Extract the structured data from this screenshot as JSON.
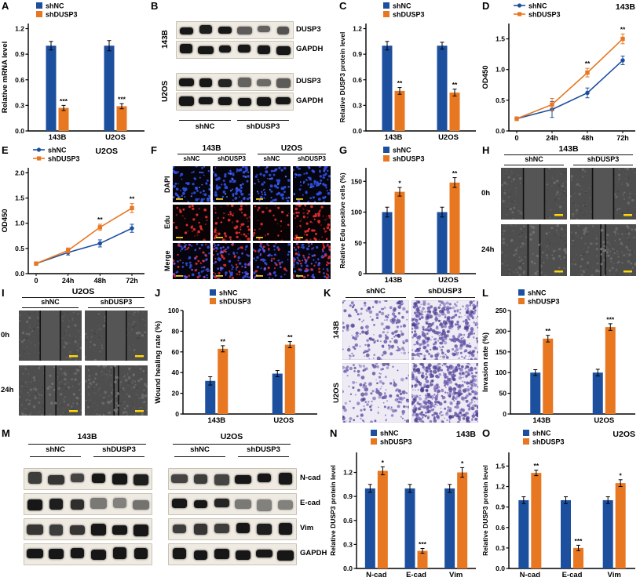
{
  "colors": {
    "shNC": "#1c4f9e",
    "shDUSP3": "#e87722"
  },
  "legend": {
    "shNC": "shNC",
    "shDUSP3": "shDUSP3"
  },
  "panels": {
    "A": {
      "label": "A"
    },
    "B": {
      "label": "B",
      "cells": [
        "143B",
        "U2OS"
      ],
      "rows": [
        "DUSP3",
        "GAPDH"
      ],
      "lane_groups": [
        "shNC",
        "shDUSP3"
      ]
    },
    "C": {
      "label": "C"
    },
    "D": {
      "label": "D"
    },
    "E": {
      "label": "E"
    },
    "F": {
      "label": "F",
      "cell_groups": [
        "143B",
        "U2OS"
      ],
      "sub_cols": [
        "shNC",
        "shDUSP3"
      ],
      "rows": [
        "DAPI",
        "Edu",
        "Merge"
      ]
    },
    "G": {
      "label": "G"
    },
    "H": {
      "label": "H",
      "title": "143B",
      "cols": [
        "shNC",
        "shDUSP3"
      ],
      "rows": [
        "0h",
        "24h"
      ]
    },
    "I": {
      "label": "I",
      "title": "U2OS",
      "cols": [
        "shNC",
        "shDUSP3"
      ],
      "rows": [
        "0h",
        "24h"
      ]
    },
    "J": {
      "label": "J"
    },
    "K": {
      "label": "K",
      "cols": [
        "shNC",
        "shDUSP3"
      ],
      "rows": [
        "143B",
        "U2OS"
      ]
    },
    "L": {
      "label": "L"
    },
    "M": {
      "label": "M",
      "cell_groups": [
        "143B",
        "U2OS"
      ],
      "lane_groups": [
        "shNC",
        "shDUSP3"
      ],
      "rows": [
        "N-cad",
        "E-cad",
        "Vim",
        "GAPDH"
      ]
    },
    "N": {
      "label": "N"
    },
    "O": {
      "label": "O"
    }
  },
  "blots": {
    "B": {
      "143B": {
        "DUSP3": [
          1,
          0.95,
          1,
          0.55,
          0.5,
          0.6
        ],
        "GAPDH": [
          1,
          1,
          1,
          1,
          1,
          1
        ]
      },
      "U2OS": {
        "DUSP3": [
          1,
          1,
          0.9,
          0.5,
          0.45,
          0.55
        ],
        "GAPDH": [
          1,
          1,
          1,
          1,
          1,
          1
        ]
      }
    },
    "M": {
      "143B": {
        "N-cad": [
          0.75,
          0.8,
          0.7,
          1,
          1,
          0.95
        ],
        "E-cad": [
          1,
          0.95,
          0.85,
          0.35,
          0.3,
          0.4
        ],
        "Vim": [
          0.8,
          0.75,
          0.8,
          1,
          1,
          1
        ],
        "GAPDH": [
          1,
          1,
          1,
          1,
          1,
          1
        ]
      },
      "U2OS": {
        "N-cad": [
          0.7,
          0.75,
          0.7,
          1,
          1,
          1
        ],
        "E-cad": [
          1,
          1,
          0.9,
          0.35,
          0.3,
          0.3
        ],
        "Vim": [
          0.75,
          0.8,
          0.75,
          1,
          0.95,
          1
        ],
        "GAPDH": [
          1,
          1,
          1,
          1,
          1,
          1
        ]
      }
    }
  },
  "chart_data": [
    {
      "panel": "A",
      "type": "bar",
      "title": "",
      "ylabel": "Relative mRNA level",
      "ylim": [
        0,
        1.26
      ],
      "yticks": [
        0,
        0.3,
        0.6,
        0.9,
        1.2
      ],
      "categories": [
        "143B",
        "U2OS"
      ],
      "series": [
        {
          "name": "shNC",
          "values": [
            1.0,
            1.0
          ],
          "errors": [
            0.05,
            0.06
          ],
          "sig": [
            "",
            ""
          ]
        },
        {
          "name": "shDUSP3",
          "values": [
            0.27,
            0.29
          ],
          "errors": [
            0.03,
            0.03
          ],
          "sig": [
            "***",
            "***"
          ]
        }
      ]
    },
    {
      "panel": "C",
      "type": "bar",
      "title": "",
      "ylabel": "Relative DUSP3 protein level",
      "ylim": [
        0,
        1.26
      ],
      "yticks": [
        0,
        0.3,
        0.6,
        0.9,
        1.2
      ],
      "categories": [
        "143B",
        "U2OS"
      ],
      "series": [
        {
          "name": "shNC",
          "values": [
            1.0,
            1.0
          ],
          "errors": [
            0.05,
            0.04
          ],
          "sig": [
            "",
            ""
          ]
        },
        {
          "name": "shDUSP3",
          "values": [
            0.47,
            0.45
          ],
          "errors": [
            0.04,
            0.04
          ],
          "sig": [
            "**",
            "**"
          ]
        }
      ]
    },
    {
      "panel": "D",
      "type": "line",
      "title": "143B",
      "ylabel": "OD450",
      "ylim": [
        0,
        1.75
      ],
      "yticks": [
        0,
        0.5,
        1.0,
        1.5
      ],
      "x_labels": [
        "0",
        "24h",
        "48h",
        "72h"
      ],
      "series": [
        {
          "name": "shNC",
          "values": [
            0.2,
            0.35,
            0.62,
            1.15
          ],
          "errors": [
            0.03,
            0.13,
            0.08,
            0.07
          ],
          "sig": [
            "",
            "",
            "",
            ""
          ]
        },
        {
          "name": "shDUSP3",
          "values": [
            0.2,
            0.43,
            0.95,
            1.5
          ],
          "errors": [
            0.03,
            0.1,
            0.07,
            0.08
          ],
          "sig": [
            "",
            "",
            "**",
            "**"
          ]
        }
      ]
    },
    {
      "panel": "E",
      "type": "line",
      "title": "U2OS",
      "ylabel": "OD450",
      "ylim": [
        0,
        2.1
      ],
      "yticks": [
        0,
        0.5,
        1.0,
        1.5,
        2.0
      ],
      "x_labels": [
        "0",
        "24h",
        "48h",
        "72h"
      ],
      "series": [
        {
          "name": "shNC",
          "values": [
            0.2,
            0.42,
            0.6,
            0.9
          ],
          "errors": [
            0.03,
            0.05,
            0.07,
            0.08
          ],
          "sig": [
            "",
            "",
            "",
            ""
          ]
        },
        {
          "name": "shDUSP3",
          "values": [
            0.2,
            0.46,
            0.92,
            1.3
          ],
          "errors": [
            0.03,
            0.05,
            0.06,
            0.09
          ],
          "sig": [
            "",
            "",
            "**",
            "**"
          ]
        }
      ]
    },
    {
      "panel": "G",
      "type": "bar",
      "title": "",
      "ylabel": "Relative Edu positive cells (%)",
      "ylim": [
        0,
        172
      ],
      "yticks": [
        0,
        50,
        100,
        150
      ],
      "categories": [
        "143B",
        "U2OS"
      ],
      "series": [
        {
          "name": "shNC",
          "values": [
            100,
            100
          ],
          "errors": [
            8,
            8
          ],
          "sig": [
            "",
            ""
          ]
        },
        {
          "name": "shDUSP3",
          "values": [
            133,
            148
          ],
          "errors": [
            7,
            8
          ],
          "sig": [
            "*",
            "**"
          ]
        }
      ]
    },
    {
      "panel": "J",
      "type": "bar",
      "title": "",
      "ylabel": "Wound healing rate (%)",
      "ylim": [
        0,
        100
      ],
      "yticks": [
        0,
        20,
        40,
        60,
        80,
        100
      ],
      "categories": [
        "143B",
        "U2OS"
      ],
      "series": [
        {
          "name": "shNC",
          "values": [
            32,
            39
          ],
          "errors": [
            4,
            3
          ],
          "sig": [
            "",
            ""
          ]
        },
        {
          "name": "shDUSP3",
          "values": [
            63,
            67
          ],
          "errors": [
            3,
            3
          ],
          "sig": [
            "**",
            "**"
          ]
        }
      ]
    },
    {
      "panel": "L",
      "type": "bar",
      "title": "",
      "ylabel": "Invasion rate (%)",
      "ylim": [
        0,
        250
      ],
      "yticks": [
        0,
        50,
        100,
        150,
        200,
        250
      ],
      "categories": [
        "143B",
        "U2OS"
      ],
      "series": [
        {
          "name": "shNC",
          "values": [
            100,
            100
          ],
          "errors": [
            7,
            8
          ],
          "sig": [
            "",
            ""
          ]
        },
        {
          "name": "shDUSP3",
          "values": [
            182,
            210
          ],
          "errors": [
            8,
            8
          ],
          "sig": [
            "**",
            "***"
          ]
        }
      ]
    },
    {
      "panel": "N",
      "type": "bar",
      "title": "143B",
      "ylabel": "Relative DUSP3 protein level",
      "ylim": [
        0,
        1.45
      ],
      "yticks": [
        0,
        0.3,
        0.6,
        0.9,
        1.2
      ],
      "categories": [
        "N-cad",
        "E-cad",
        "Vim"
      ],
      "series": [
        {
          "name": "shNC",
          "values": [
            1.0,
            1.0,
            1.0
          ],
          "errors": [
            0.05,
            0.05,
            0.05
          ],
          "sig": [
            "",
            "",
            ""
          ]
        },
        {
          "name": "shDUSP3",
          "values": [
            1.22,
            0.22,
            1.2
          ],
          "errors": [
            0.05,
            0.03,
            0.06
          ],
          "sig": [
            "*",
            "***",
            "*"
          ]
        }
      ]
    },
    {
      "panel": "O",
      "type": "bar",
      "title": "U2OS",
      "ylabel": "Relative DUSP3 protein level",
      "ylim": [
        0,
        1.7
      ],
      "yticks": [
        0,
        0.3,
        0.6,
        0.9,
        1.2,
        1.5
      ],
      "categories": [
        "N-cad",
        "E-cad",
        "Vim"
      ],
      "series": [
        {
          "name": "shNC",
          "values": [
            1.0,
            1.0,
            1.0
          ],
          "errors": [
            0.05,
            0.05,
            0.05
          ],
          "sig": [
            "",
            "",
            ""
          ]
        },
        {
          "name": "shDUSP3",
          "values": [
            1.4,
            0.3,
            1.25
          ],
          "errors": [
            0.04,
            0.04,
            0.05
          ],
          "sig": [
            "**",
            "***",
            "*"
          ]
        }
      ]
    }
  ]
}
